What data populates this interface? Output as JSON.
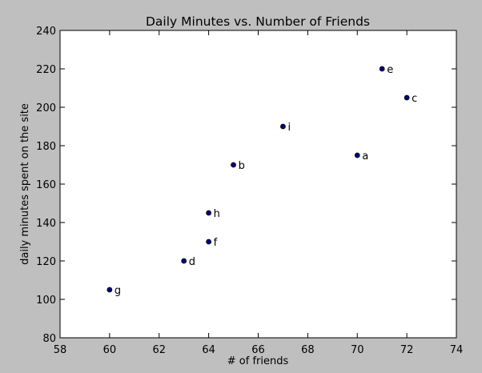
{
  "chart_data": {
    "type": "scatter",
    "title": "Daily Minutes vs. Number of Friends",
    "xlabel": "# of friends",
    "ylabel": "daily minutes spent on the site",
    "xlim": [
      58,
      74
    ],
    "ylim": [
      80,
      240
    ],
    "xticks": [
      58,
      60,
      62,
      64,
      66,
      68,
      70,
      72,
      74
    ],
    "yticks": [
      80,
      100,
      120,
      140,
      160,
      180,
      200,
      220,
      240
    ],
    "grid": false,
    "legend": "none",
    "marker_color": "#000080",
    "points": [
      {
        "label": "a",
        "x": 70,
        "y": 175
      },
      {
        "label": "b",
        "x": 65,
        "y": 170
      },
      {
        "label": "c",
        "x": 72,
        "y": 205
      },
      {
        "label": "d",
        "x": 63,
        "y": 120
      },
      {
        "label": "e",
        "x": 71,
        "y": 220
      },
      {
        "label": "f",
        "x": 64,
        "y": 130
      },
      {
        "label": "g",
        "x": 60,
        "y": 105
      },
      {
        "label": "h",
        "x": 64,
        "y": 145
      },
      {
        "label": "i",
        "x": 67,
        "y": 190
      }
    ]
  }
}
